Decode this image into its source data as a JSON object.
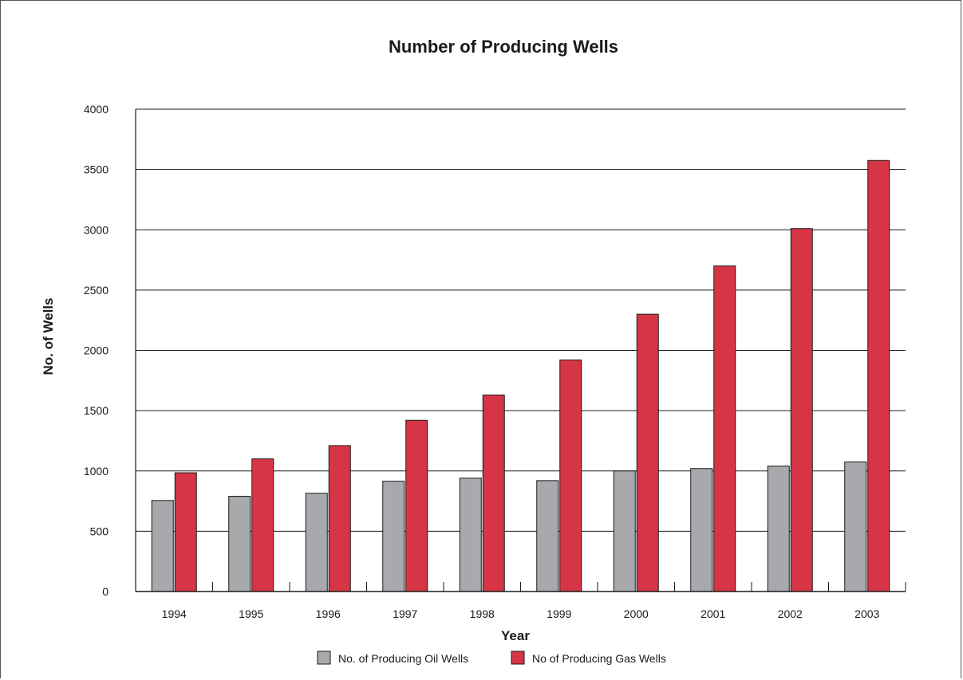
{
  "chart_data": {
    "type": "bar",
    "title": "Number of Producing Wells",
    "xlabel": "Year",
    "ylabel": "No. of Wells",
    "ylim": [
      0,
      4000
    ],
    "yticks": [
      0,
      500,
      1000,
      1500,
      2000,
      2500,
      3000,
      3500,
      4000
    ],
    "grid": true,
    "legend_position": "bottom",
    "categories": [
      "1994",
      "1995",
      "1996",
      "1997",
      "1998",
      "1999",
      "2000",
      "2001",
      "2002",
      "2003"
    ],
    "series": [
      {
        "name": "No. of Producing Oil Wells",
        "color": "#a7a9ac",
        "values": [
          755,
          790,
          815,
          915,
          940,
          920,
          1000,
          1020,
          1040,
          1075
        ]
      },
      {
        "name": "No of Producing Gas Wells",
        "color": "#d63545",
        "values": [
          985,
          1100,
          1210,
          1420,
          1630,
          1920,
          2300,
          2700,
          3010,
          3575
        ]
      }
    ]
  }
}
